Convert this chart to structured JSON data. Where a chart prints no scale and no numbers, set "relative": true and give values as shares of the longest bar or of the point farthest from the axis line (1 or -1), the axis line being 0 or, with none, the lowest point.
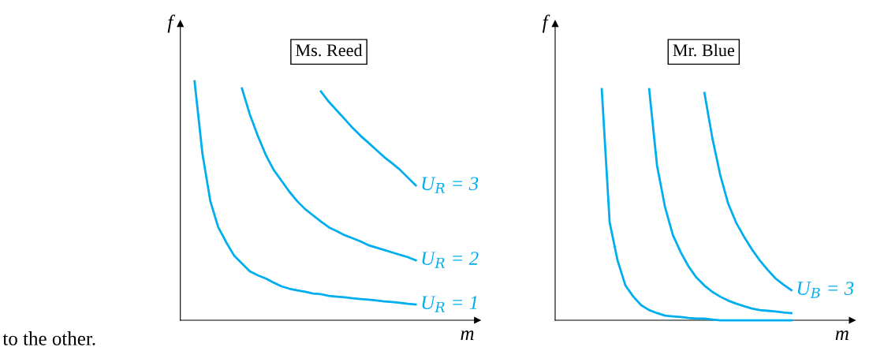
{
  "chart_data": [
    {
      "type": "line",
      "title": "Ms. Reed",
      "xlabel": "m",
      "ylabel": "f",
      "relative": true,
      "annotations": [
        "to the other."
      ],
      "categories": [
        null,
        null,
        null,
        null,
        null,
        null,
        null,
        null,
        null,
        null,
        null,
        null,
        null,
        null,
        null,
        null,
        null,
        null,
        null,
        null,
        null,
        null,
        null,
        null,
        null,
        null,
        null,
        null,
        null
      ],
      "series": [
        {
          "name": "U$_{R}$ = 1",
          "color": "#00aeef",
          "values": [
            1.0,
            0.696,
            0.498,
            0.389,
            0.327,
            0.271,
            0.238,
            0.205,
            0.188,
            0.175,
            0.158,
            0.142,
            0.132,
            0.125,
            0.119,
            0.112,
            0.109,
            0.102,
            0.099,
            0.096,
            0.092,
            0.089,
            0.086,
            0.083,
            0.079,
            0.076,
            0.073,
            0.069,
            0.066
          ]
        },
        {
          "name": "U$_{R}$ = 2",
          "color": "#00aeef",
          "values": [
            null,
            null,
            null,
            null,
            null,
            null,
            0.97,
            0.861,
            0.772,
            0.693,
            0.63,
            0.584,
            0.538,
            0.498,
            0.465,
            0.439,
            0.413,
            0.389,
            0.373,
            0.356,
            0.343,
            0.33,
            0.314,
            0.304,
            0.294,
            0.284,
            0.274,
            0.264,
            0.251
          ]
        },
        {
          "name": "U$_{R}$ = 3",
          "color": "#00aeef",
          "values": [
            null,
            null,
            null,
            null,
            null,
            null,
            null,
            null,
            null,
            null,
            null,
            null,
            null,
            null,
            null,
            null,
            0.957,
            0.914,
            0.878,
            0.842,
            0.805,
            0.772,
            0.743,
            0.713,
            0.683,
            0.657,
            0.63,
            0.597,
            0.564
          ]
        }
      ]
    },
    {
      "type": "line",
      "title": "Mr. Blue",
      "xlabel": "m",
      "ylabel": "f",
      "relative": true,
      "categories": [
        null,
        null,
        null,
        null,
        null,
        null,
        null,
        null,
        null,
        null,
        null,
        null,
        null,
        null,
        null,
        null,
        null,
        null,
        null,
        null,
        null,
        null,
        null,
        null,
        null
      ],
      "series": [
        {
          "color": "#00aeef",
          "values": [
            1.0,
            0.423,
            0.259,
            0.15,
            0.102,
            0.065,
            0.044,
            0.031,
            0.02,
            0.017,
            0.014,
            0.01,
            0.007,
            0.007,
            0.003,
            0,
            0,
            0,
            0,
            0,
            0,
            0,
            0,
            0,
            0
          ]
        },
        {
          "color": "#00aeef",
          "values": [
            null,
            null,
            null,
            null,
            null,
            null,
            1.0,
            0.669,
            0.491,
            0.369,
            0.294,
            0.232,
            0.184,
            0.15,
            0.123,
            0.102,
            0.085,
            0.072,
            0.061,
            0.051,
            0.044,
            0.041,
            0.038,
            0.034,
            0.031
          ]
        },
        {
          "name": "U$_{B}$ = 3",
          "color": "#00aeef",
          "values": [
            null,
            null,
            null,
            null,
            null,
            null,
            null,
            null,
            null,
            null,
            null,
            null,
            null,
            0.983,
            0.788,
            0.628,
            0.505,
            0.423,
            0.362,
            0.307,
            0.259,
            0.218,
            0.181,
            0.154,
            0.13
          ]
        }
      ]
    }
  ]
}
